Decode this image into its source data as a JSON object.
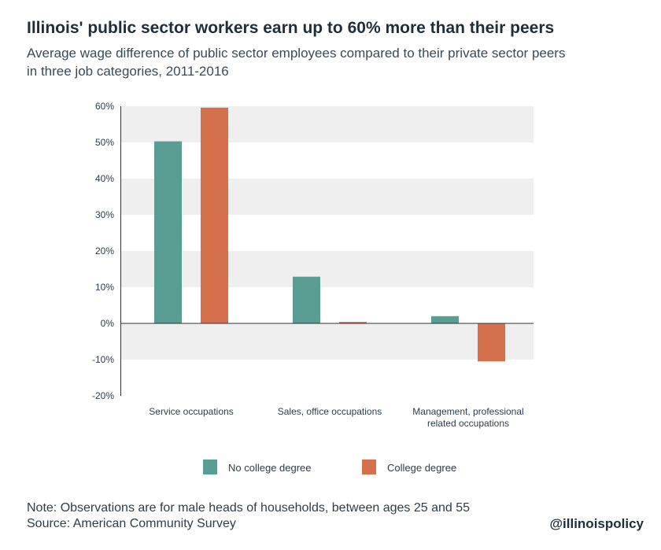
{
  "title": "Illinois' public sector workers earn up to 60% more than their peers",
  "subtitle": "Average wage difference of public sector employees compared to their private sector peers in three job categories, 2011-2016",
  "note": "Note: Observations are for male heads of households, between ages 25 and 55",
  "source": "Source: American Community Survey",
  "handle": "@illinoispolicy",
  "colors": {
    "no_college": "#5a9e93",
    "college": "#d4714c",
    "band": "#efefef",
    "axis": "#333333",
    "text": "#2e3d49"
  },
  "chart_data": {
    "type": "bar",
    "categories": [
      [
        "Service occupations"
      ],
      [
        "Sales, office occupations"
      ],
      [
        "Management, professional",
        "related occupations"
      ]
    ],
    "series": [
      {
        "name": "No college degree",
        "values": [
          50.3,
          12.9,
          2.0
        ]
      },
      {
        "name": "College degree",
        "values": [
          59.6,
          0.4,
          -10.5
        ]
      }
    ],
    "y_ticks": [
      "60%",
      "50%",
      "40%",
      "30%",
      "20%",
      "10%",
      "0%",
      "-10%",
      "-20%"
    ],
    "y_tick_values": [
      60,
      50,
      40,
      30,
      20,
      10,
      0,
      -10,
      -20
    ],
    "ylim": [
      -20,
      60
    ],
    "grid": "alternating bands",
    "legend_position": "bottom"
  }
}
